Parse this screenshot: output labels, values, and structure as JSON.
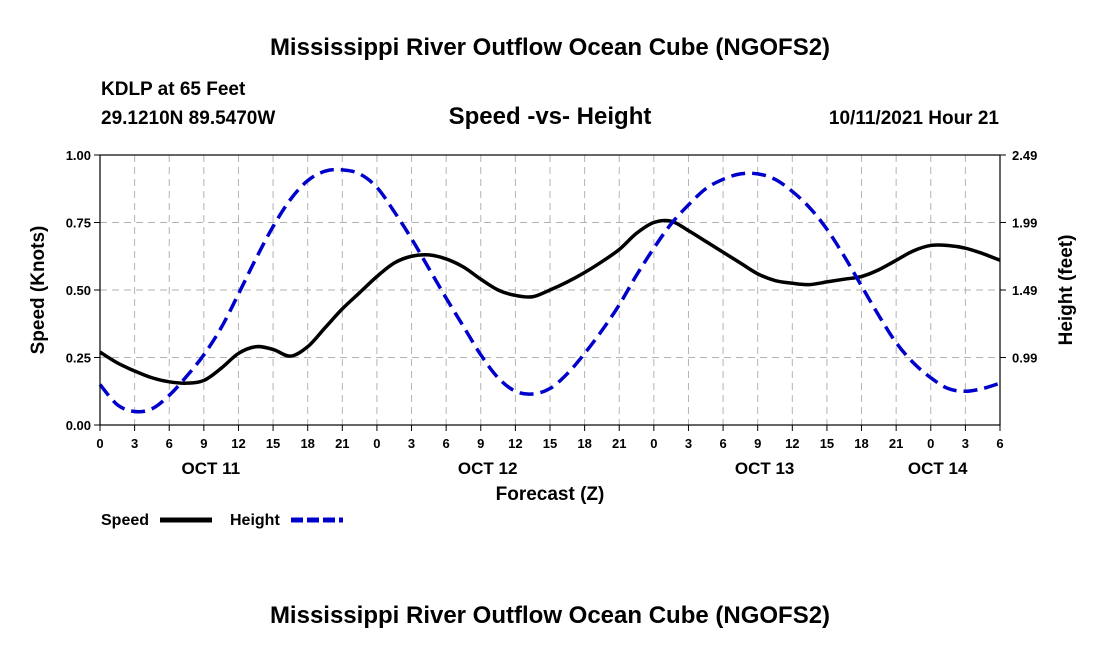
{
  "chart_data": {
    "type": "line",
    "title": "Mississippi River Outflow Ocean Cube (NGOFS2)",
    "footer_title": "Mississippi River Outflow Ocean Cube (NGOFS2)",
    "station": "KDLP at 65 Feet",
    "location": "29.1210N  89.5470W",
    "subtitle": "Speed -vs- Height",
    "run_time": "10/11/2021 Hour 21",
    "xlabel": "Forecast (Z)",
    "ylabel_left": "Speed (Knots)",
    "ylabel_right": "Height (feet)",
    "x_range": [
      0,
      78
    ],
    "ylim_left": [
      0,
      1
    ],
    "ylim_right": [
      0.49,
      2.49
    ],
    "left_ticks": [
      "0.00",
      "0.25",
      "0.50",
      "0.75",
      "1.00"
    ],
    "left_tick_values": [
      0,
      0.25,
      0.5,
      0.75,
      1.0
    ],
    "right_ticks": [
      "0.99",
      "1.49",
      "1.99",
      "2.49"
    ],
    "right_tick_values": [
      0.99,
      1.49,
      1.99,
      2.49
    ],
    "x_tick_labels": [
      "0",
      "3",
      "6",
      "9",
      "12",
      "15",
      "18",
      "21",
      "0",
      "3",
      "6",
      "9",
      "12",
      "15",
      "18",
      "21",
      "0",
      "3",
      "6",
      "9",
      "12",
      "15",
      "18",
      "21",
      "0",
      "3",
      "6"
    ],
    "date_labels": [
      {
        "label": "OCT 11",
        "hour": 9.6
      },
      {
        "label": "OCT 12",
        "hour": 33.6
      },
      {
        "label": "OCT 13",
        "hour": 57.6
      },
      {
        "label": "OCT 14",
        "hour": 72.6
      }
    ],
    "grid": true,
    "legend_position": "bottom-left",
    "series": [
      {
        "name": "Speed",
        "axis": "left",
        "style": "solid",
        "color": "#000000",
        "x": [
          0,
          1.5,
          3,
          4.5,
          6,
          7.5,
          9,
          10.5,
          12,
          13.5,
          15,
          16.5,
          18,
          19.5,
          21,
          22.5,
          24,
          25.5,
          27,
          28.5,
          30,
          31.5,
          33,
          34.5,
          36,
          37.5,
          39,
          40.5,
          42,
          43.5,
          45,
          46.5,
          48,
          49.5,
          51,
          52.5,
          54,
          55.5,
          57,
          58.5,
          60,
          61.5,
          63,
          64.5,
          66,
          67.5,
          69,
          70.5,
          72,
          73.5,
          75,
          76.5,
          78
        ],
        "y": [
          0.27,
          0.23,
          0.2,
          0.175,
          0.16,
          0.155,
          0.165,
          0.21,
          0.265,
          0.29,
          0.28,
          0.255,
          0.29,
          0.36,
          0.43,
          0.49,
          0.55,
          0.6,
          0.625,
          0.63,
          0.615,
          0.585,
          0.54,
          0.5,
          0.48,
          0.475,
          0.5,
          0.53,
          0.565,
          0.605,
          0.65,
          0.71,
          0.75,
          0.755,
          0.72,
          0.68,
          0.64,
          0.6,
          0.56,
          0.535,
          0.525,
          0.52,
          0.53,
          0.54,
          0.55,
          0.575,
          0.61,
          0.645,
          0.665,
          0.665,
          0.655,
          0.635,
          0.61
        ]
      },
      {
        "name": "Height",
        "axis": "right",
        "style": "dashed",
        "color": "#0000cc",
        "x": [
          0,
          1.5,
          3,
          4.5,
          6,
          7.5,
          9,
          10.5,
          12,
          13.5,
          15,
          16.5,
          18,
          19.5,
          21,
          22.5,
          24,
          25.5,
          27,
          28.5,
          30,
          31.5,
          33,
          34.5,
          36,
          37.5,
          39,
          40.5,
          42,
          43.5,
          45,
          46.5,
          48,
          49.5,
          51,
          52.5,
          54,
          55.5,
          57,
          58.5,
          60,
          61.5,
          63,
          64.5,
          66,
          67.5,
          69,
          70.5,
          72,
          73.5,
          75,
          76.5,
          78
        ],
        "y": [
          0.79,
          0.64,
          0.59,
          0.61,
          0.71,
          0.85,
          1.01,
          1.21,
          1.46,
          1.72,
          1.96,
          2.16,
          2.3,
          2.37,
          2.38,
          2.35,
          2.25,
          2.07,
          1.87,
          1.65,
          1.43,
          1.22,
          1.01,
          0.84,
          0.74,
          0.72,
          0.76,
          0.87,
          1.02,
          1.19,
          1.38,
          1.6,
          1.8,
          1.98,
          2.12,
          2.24,
          2.31,
          2.35,
          2.35,
          2.31,
          2.22,
          2.1,
          1.94,
          1.74,
          1.52,
          1.3,
          1.1,
          0.95,
          0.84,
          0.76,
          0.74,
          0.76,
          0.8
        ]
      }
    ]
  }
}
